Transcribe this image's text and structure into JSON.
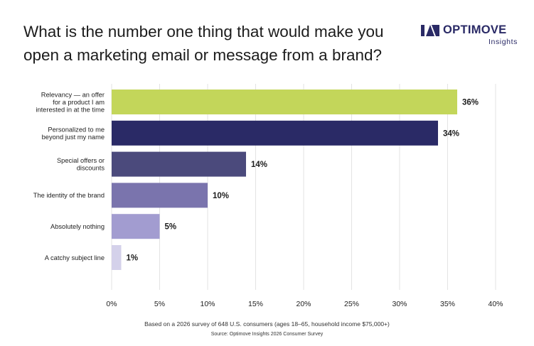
{
  "title": {
    "line1": "What is the number one thing that would make you",
    "line2": "open a marketing email or message from a brand?"
  },
  "logo": {
    "brand": "OPTIMOVE",
    "sub": "Insights"
  },
  "chart_data": {
    "type": "bar",
    "orientation": "horizontal",
    "categories": [
      [
        "Relevancy — an offer",
        "for a product I am",
        "interested in at the time"
      ],
      [
        "Personalized to me",
        "beyond just my name"
      ],
      [
        "Special offers or",
        "discounts"
      ],
      [
        "The identity of the brand"
      ],
      [
        "Absolutely nothing"
      ],
      [
        "A catchy subject line"
      ]
    ],
    "values": [
      36,
      34,
      14,
      10,
      5,
      1
    ],
    "value_labels": [
      "36%",
      "34%",
      "14%",
      "10%",
      "5%",
      "1%"
    ],
    "colors": [
      "#c3d65a",
      "#2a2a66",
      "#4b4a7c",
      "#7a74ad",
      "#a29cd0",
      "#d4d1ea"
    ],
    "xlim": [
      0,
      40
    ],
    "xticks": [
      0,
      5,
      10,
      15,
      20,
      25,
      30,
      35,
      40
    ],
    "xtick_labels": [
      "0%",
      "5%",
      "10%",
      "15%",
      "20%",
      "25%",
      "30%",
      "35%",
      "40%"
    ],
    "grid": true,
    "xlabel": "",
    "ylabel": ""
  },
  "footnote": "Based on a 2026 survey of 648 U.S. consumers (ages 18–65, household income $75,000+)",
  "source": "Source: Optimove Insights 2026 Consumer Survey"
}
